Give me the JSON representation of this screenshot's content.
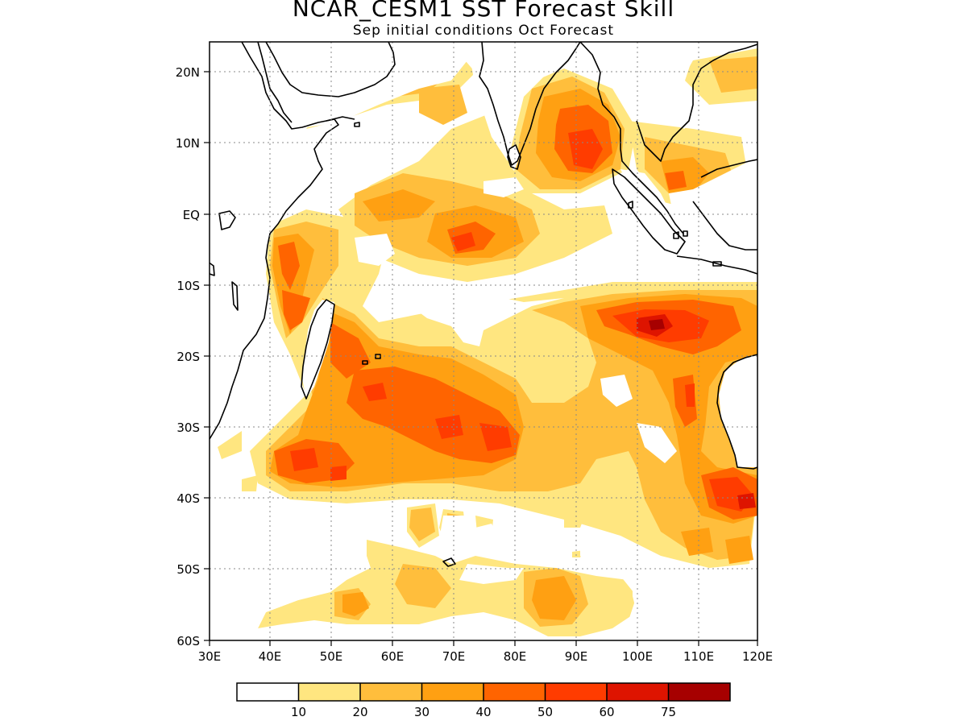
{
  "title": "NCAR_CESM1 SST Forecast Skill",
  "subtitle": "Sep initial conditions  Oct Forecast",
  "map": {
    "lon_range": [
      30,
      120
    ],
    "lat_range": [
      -60,
      24
    ],
    "lon_ticks": [
      "30E",
      "40E",
      "50E",
      "60E",
      "70E",
      "80E",
      "90E",
      "100E",
      "110E",
      "120E"
    ],
    "lat_ticks": [
      "20N",
      "10N",
      "EQ",
      "10S",
      "20S",
      "30S",
      "40S",
      "50S",
      "60S"
    ],
    "gridlines": true
  },
  "legend": {
    "boundaries": [
      "10",
      "20",
      "30",
      "40",
      "50",
      "60",
      "75"
    ],
    "colors": [
      "#ffffff",
      "#ffe680",
      "#ffbe3c",
      "#ffa012",
      "#ff6400",
      "#ff3c00",
      "#de1400",
      "#a60000"
    ]
  }
}
